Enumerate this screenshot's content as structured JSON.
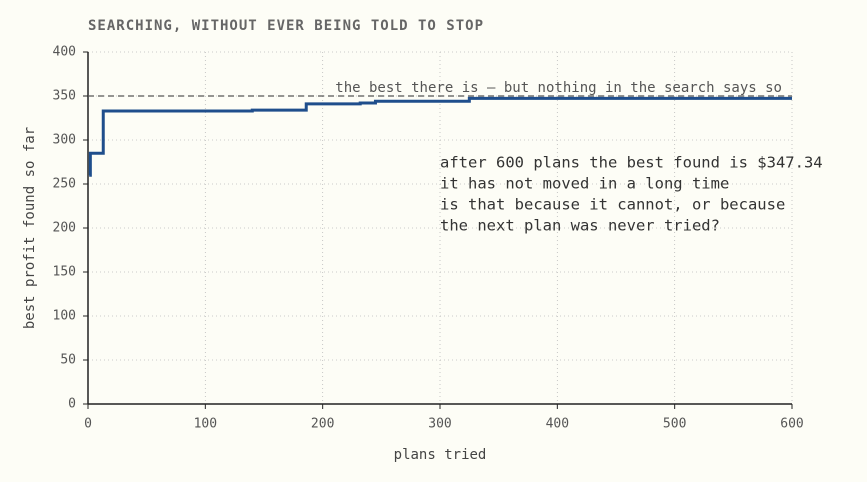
{
  "chart_data": {
    "type": "line",
    "drawstyle": "steps-post",
    "title": "SEARCHING, WITHOUT EVER BEING TOLD TO STOP",
    "xlabel": "plans tried",
    "ylabel": "best profit found so far",
    "x": [
      1,
      2,
      13,
      140,
      186,
      232,
      245,
      325,
      600
    ],
    "series": [
      {
        "name": "best profit",
        "color": "#1f4e8c",
        "values": [
          260,
          285,
          333,
          334,
          341,
          342,
          344,
          347.34,
          347.34
        ]
      }
    ],
    "xlim": [
      0,
      600
    ],
    "xticks": [
      0,
      100,
      200,
      300,
      400,
      500,
      600
    ],
    "ylim": [
      0,
      400
    ],
    "yticks": [
      0,
      50,
      100,
      150,
      200,
      250,
      300,
      350,
      400
    ],
    "grid": true,
    "reference_line": {
      "value": 350,
      "label": "the best there is — but nothing in the search says so",
      "color": "#555"
    },
    "annotation": [
      "after 600 plans the best found is $347.34",
      "it has not moved in a long time",
      "is that because it cannot, or because",
      "the next plan was never tried?"
    ]
  }
}
